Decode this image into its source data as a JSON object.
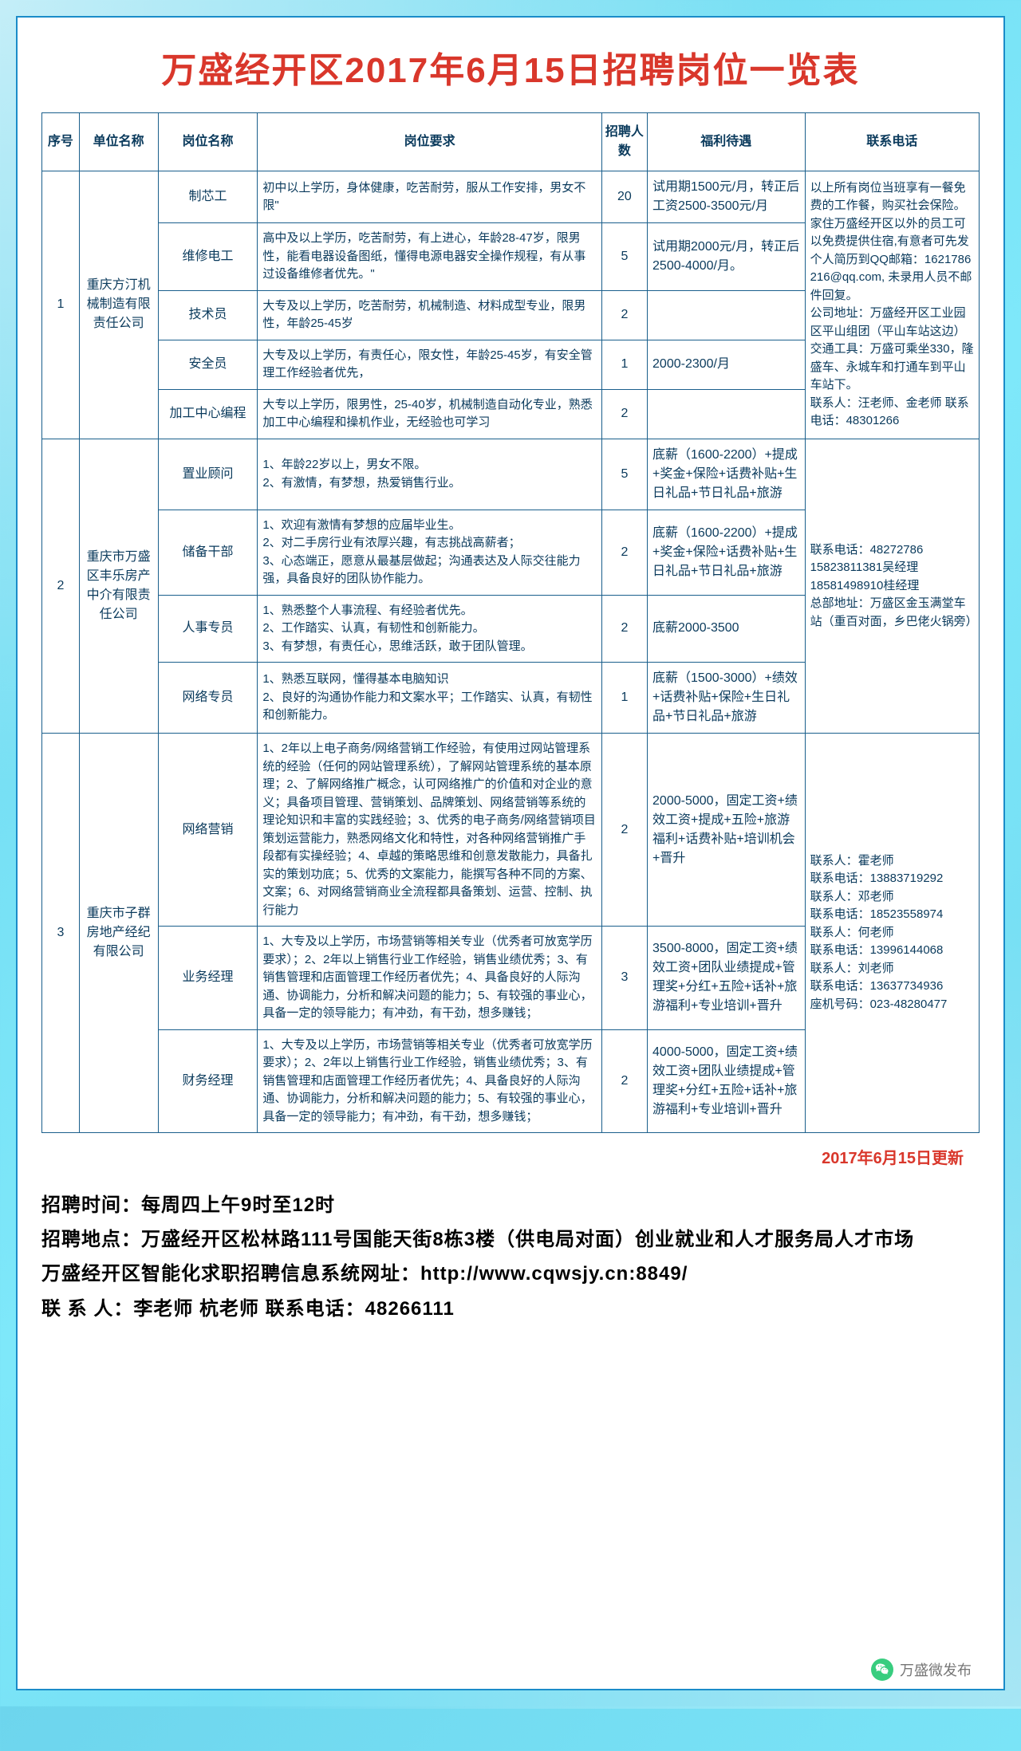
{
  "title": "万盛经开区2017年6月15日招聘岗位一览表",
  "headers": [
    "序号",
    "单位名称",
    "岗位名称",
    "岗位要求",
    "招聘人数",
    "福利待遇",
    "联系电话"
  ],
  "companies": [
    {
      "seq": "1",
      "name": "重庆方汀机械制造有限责任公司",
      "contact": "以上所有岗位当班享有一餐免费的工作餐，购买社会保险。家住万盛经开区以外的员工可以免费提供住宿,有意者可先发个人简历到QQ邮箱：1621786216@qq.com, 未录用人员不邮件回复。\n公司地址：万盛经开区工业园区平山组团（平山车站这边）\n交通工具：万盛可乘坐330，隆盛车、永城车和打通车到平山车站下。\n联系人：汪老师、金老师      联系电话：48301266",
      "positions": [
        {
          "name": "制芯工",
          "req": "初中以上学历，身体健康，吃苦耐劳，服从工作安排，男女不限\"",
          "num": "20",
          "benefit": "试用期1500元/月，转正后工资2500-3500元/月"
        },
        {
          "name": "维修电工",
          "req": "高中及以上学历，吃苦耐劳，有上进心，年龄28-47岁，限男性，能看电器设备图纸，懂得电源电器安全操作规程，有从事过设备维修者优先。\"",
          "num": "5",
          "benefit": "试用期2000元/月，转正后2500-4000/月。"
        },
        {
          "name": "技术员",
          "req": "大专及以上学历，吃苦耐劳，机械制造、材料成型专业，限男性，年龄25-45岁",
          "num": "2",
          "benefit": ""
        },
        {
          "name": "安全员",
          "req": "大专及以上学历，有责任心，限女性，年龄25-45岁，有安全管理工作经验者优先，",
          "num": "1",
          "benefit": "2000-2300/月"
        },
        {
          "name": "加工中心编程",
          "req": "大专以上学历，限男性，25-40岁，机械制造自动化专业，熟悉加工中心编程和操机作业，无经验也可学习",
          "num": "2",
          "benefit": ""
        }
      ]
    },
    {
      "seq": "2",
      "name": "重庆市万盛区丰乐房产中介有限责任公司",
      "contact": "联系电话：48272786\n15823811381吴经理\n18581498910桂经理\n总部地址：万盛区金玉满堂车站（重百对面，乡巴佬火锅旁）",
      "positions": [
        {
          "name": "置业顾问",
          "req": "1、年龄22岁以上，男女不限。\n2、有激情，有梦想，热爱销售行业。",
          "num": "5",
          "benefit": "底薪（1600-2200）+提成+奖金+保险+话费补贴+生日礼品+节日礼品+旅游"
        },
        {
          "name": "储备干部",
          "req": "1、欢迎有激情有梦想的应届毕业生。\n2、对二手房行业有浓厚兴趣，有志挑战高薪者；\n3、心态端正，愿意从最基层做起；沟通表达及人际交往能力强，具备良好的团队协作能力。",
          "num": "2",
          "benefit": "底薪（1600-2200）+提成+奖金+保险+话费补贴+生日礼品+节日礼品+旅游"
        },
        {
          "name": "人事专员",
          "req": "1、熟悉整个人事流程、有经验者优先。\n2、工作踏实、认真，有韧性和创新能力。\n3、有梦想，有责任心，思维活跃，敢于团队管理。",
          "num": "2",
          "benefit": "底薪2000-3500"
        },
        {
          "name": "网络专员",
          "req": "1、熟悉互联网，懂得基本电脑知识\n2、良好的沟通协作能力和文案水平；工作踏实、认真，有韧性和创新能力。",
          "num": "1",
          "benefit": "底薪（1500-3000）+绩效+话费补贴+保险+生日礼品+节日礼品+旅游"
        }
      ]
    },
    {
      "seq": "3",
      "name": "重庆市子群房地产经纪有限公司",
      "contact": "联系人：霍老师\n联系电话：13883719292\n联系人：邓老师\n联系电话：18523558974\n联系人：何老师\n联系电话：13996144068\n联系人：刘老师\n联系电话：13637734936\n座机号码：023-48280477",
      "positions": [
        {
          "name": "网络营销",
          "req": "1、2年以上电子商务/网络营销工作经验，有使用过网站管理系统的经验（任何的网站管理系统），了解网站管理系统的基本原理；2、了解网络推广概念，认可网络推广的价值和对企业的意义；具备项目管理、营销策划、品牌策划、网络营销等系统的理论知识和丰富的实践经验；3、优秀的电子商务/网络营销项目策划运营能力，熟悉网络文化和特性，对各种网络营销推广手段都有实操经验；4、卓越的策略思维和创意发散能力，具备扎实的策划功底；5、优秀的文案能力，能撰写各种不同的方案、文案；6、对网络营销商业全流程都具备策划、运营、控制、执行能力",
          "num": "2",
          "benefit": "2000-5000，固定工资+绩效工资+提成+五险+旅游福利+话费补贴+培训机会+晋升"
        },
        {
          "name": "业务经理",
          "req": "1、大专及以上学历，市场营销等相关专业（优秀者可放宽学历要求）；2、2年以上销售行业工作经验，销售业绩优秀；3、有销售管理和店面管理工作经历者优先；4、具备良好的人际沟通、协调能力，分析和解决问题的能力；5、有较强的事业心，具备一定的领导能力；有冲劲，有干劲，想多赚钱；",
          "num": "3",
          "benefit": "3500-8000，固定工资+绩效工资+团队业绩提成+管理奖+分红+五险+话补+旅游福利+专业培训+晋升"
        },
        {
          "name": "财务经理",
          "req": "1、大专及以上学历，市场营销等相关专业（优秀者可放宽学历要求）；2、2年以上销售行业工作经验，销售业绩优秀；3、有销售管理和店面管理工作经历者优先；4、具备良好的人际沟通、协调能力，分析和解决问题的能力；5、有较强的事业心，具备一定的领导能力；有冲劲，有干劲，想多赚钱；",
          "num": "2",
          "benefit": "4000-5000，固定工资+绩效工资+团队业绩提成+管理奖+分红+五险+话补+旅游福利+专业培训+晋升"
        }
      ]
    }
  ],
  "updateDate": "2017年6月15日更新",
  "footer": {
    "l1": "招聘时间：每周四上午9时至12时",
    "l2": "招聘地点：万盛经开区松林路111号国能天街8栋3楼（供电局对面）创业就业和人才服务局人才市场",
    "l3": "万盛经开区智能化求职招聘信息系统网址：http://www.cqwsjy.cn:8849/",
    "l4": "联 系 人：李老师  杭老师    联系电话：48266111"
  },
  "watermark": "万盛微发布"
}
